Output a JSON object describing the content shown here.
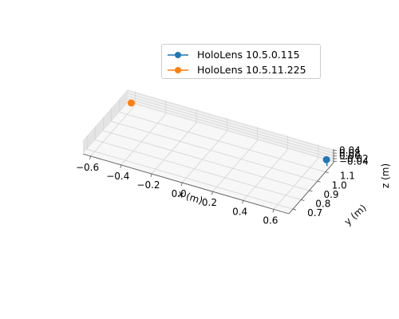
{
  "chart_data": {
    "type": "scatter",
    "projection": "3d",
    "xlabel": "x (m)",
    "ylabel": "y (m)",
    "zlabel": "z (m)",
    "xticks": [
      "−0.6",
      "−0.4",
      "−0.2",
      "0.0",
      "0.2",
      "0.4",
      "0.6"
    ],
    "yticks": [
      "0.7",
      "0.8",
      "0.9",
      "1.0",
      "1.1"
    ],
    "zticks": [
      "−0.04",
      "−0.02",
      "0.00",
      "0.02",
      "0.04"
    ],
    "xlim": [
      -0.65,
      0.7
    ],
    "ylim": [
      0.65,
      1.2
    ],
    "zlim": [
      -0.05,
      0.05
    ],
    "grid": true,
    "legend_position": "top-right",
    "series": [
      {
        "name": "HoloLens 10.5.0.115",
        "color": "#1f77b4",
        "points": [
          {
            "x": 0.68,
            "y": 1.15,
            "z": 0.0
          },
          {
            "x": 0.7,
            "y": 1.12,
            "z": -0.02
          }
        ]
      },
      {
        "name": "HoloLens 10.5.11.225",
        "color": "#ff7f0e",
        "points": [
          {
            "x": -0.6,
            "y": 1.15,
            "z": 0.0
          }
        ]
      }
    ]
  }
}
